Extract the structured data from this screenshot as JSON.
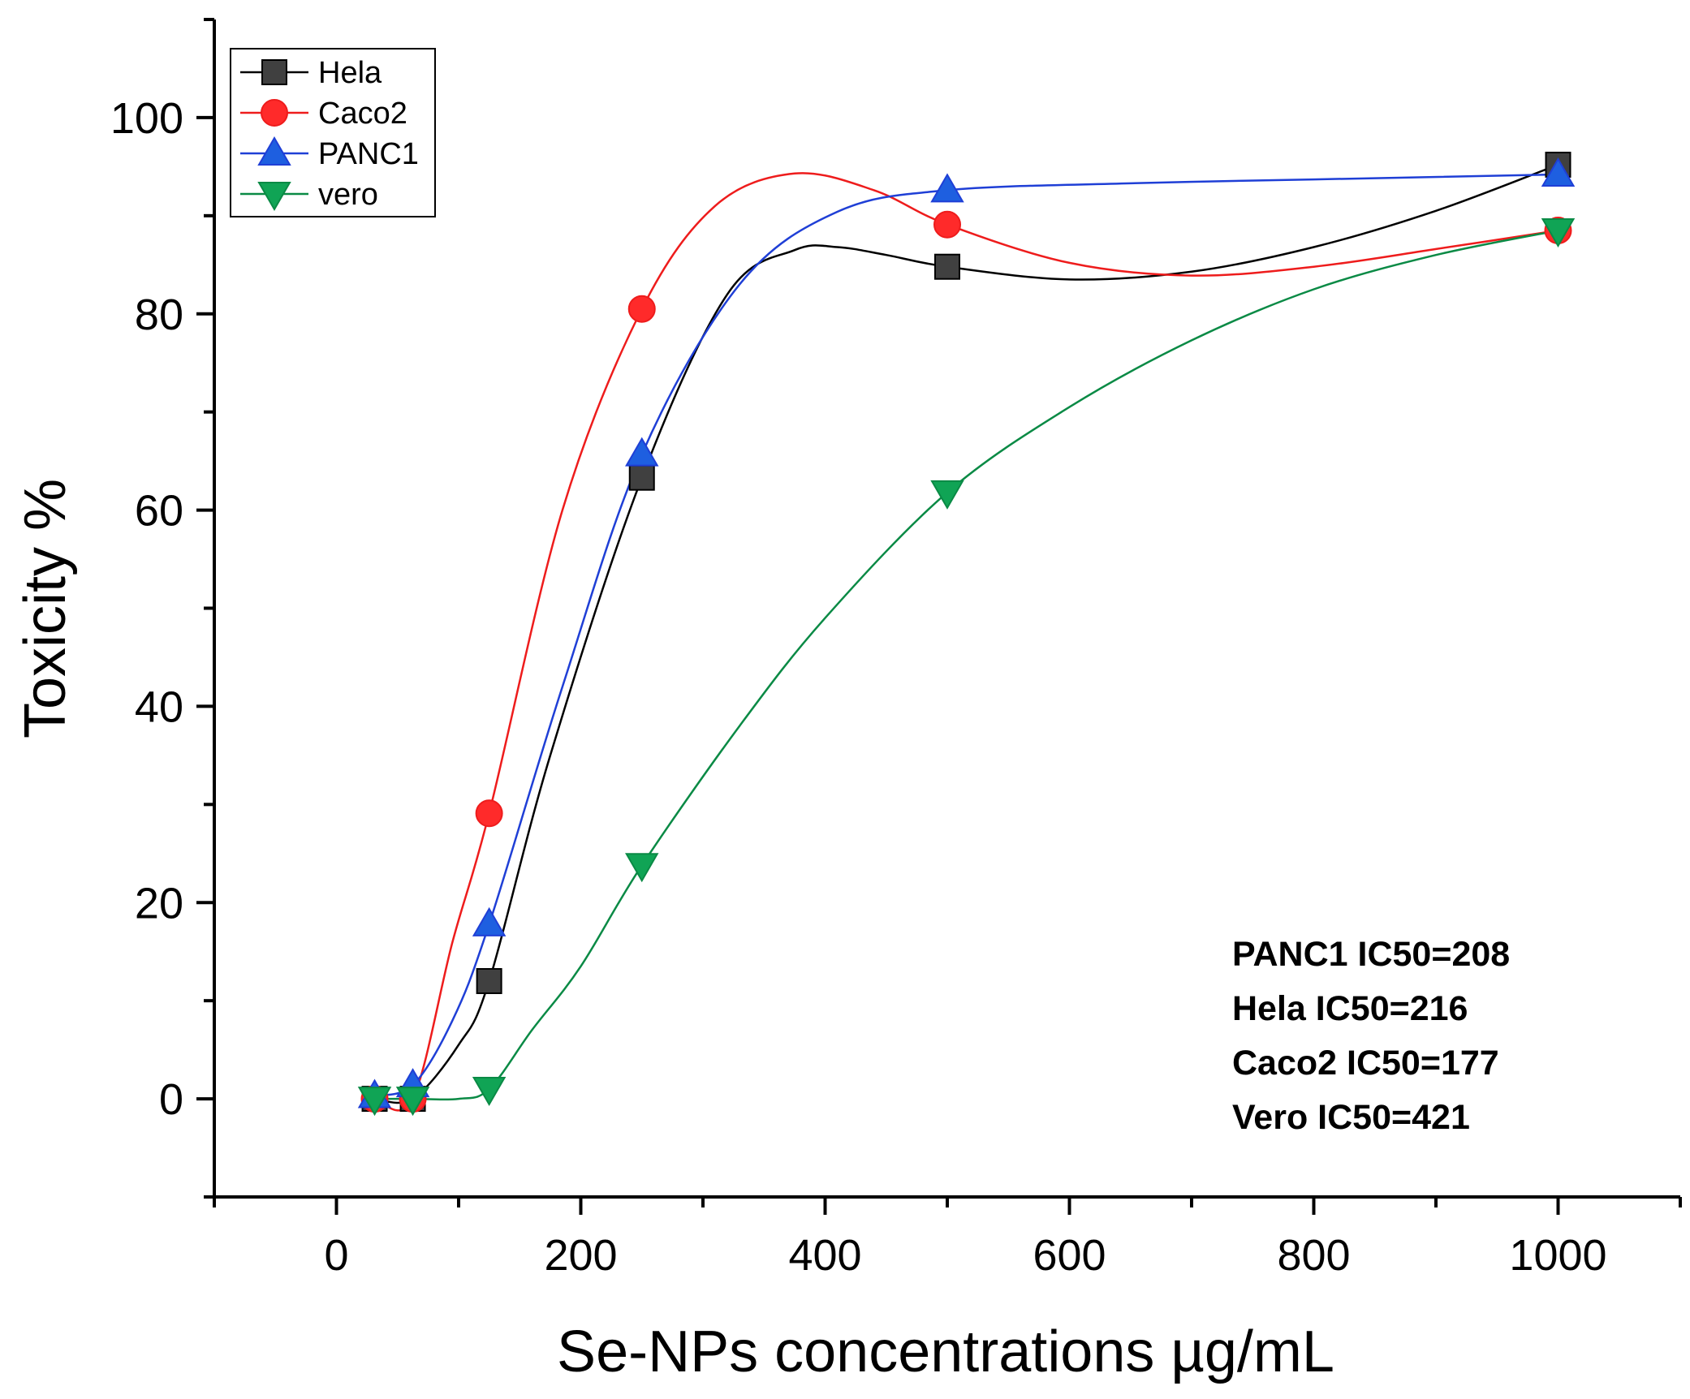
{
  "chart_data": {
    "type": "line",
    "title": "",
    "xlabel": "Se-NPs concentrations µg/mL",
    "ylabel": "Toxicity %",
    "xlim": [
      -100,
      1100
    ],
    "ylim": [
      -10,
      110
    ],
    "x_ticks": [
      0,
      200,
      400,
      600,
      800,
      1000
    ],
    "x_tick_labels": [
      "0",
      "200",
      "400",
      "600",
      "800",
      "1000"
    ],
    "x_minor_ticks": [
      -100,
      100,
      300,
      500,
      700,
      900,
      1100
    ],
    "y_ticks": [
      0,
      20,
      40,
      60,
      80,
      100
    ],
    "y_tick_labels": [
      "0",
      "20",
      "40",
      "60",
      "80",
      "100"
    ],
    "y_minor_ticks": [
      -10,
      10,
      30,
      50,
      70,
      90,
      110
    ],
    "grid": false,
    "legend_position": "top-left",
    "series": [
      {
        "name": "Hela",
        "color": "#000000",
        "fill": "#404040",
        "marker": "square",
        "x": [
          31.25,
          62.5,
          125,
          250,
          500,
          1000
        ],
        "y": [
          0,
          0,
          12,
          63.3,
          84.8,
          95.2
        ],
        "curve": [
          [
            31.25,
            0
          ],
          [
            62.5,
            0
          ],
          [
            100,
            5.5
          ],
          [
            125,
            12
          ],
          [
            175,
            35
          ],
          [
            250,
            63.3
          ],
          [
            320,
            82
          ],
          [
            375,
            86.5
          ],
          [
            410,
            86.8
          ],
          [
            450,
            86
          ],
          [
            500,
            84.8
          ],
          [
            600,
            83.5
          ],
          [
            700,
            84.3
          ],
          [
            800,
            86.8
          ],
          [
            900,
            90.5
          ],
          [
            1000,
            95.2
          ]
        ]
      },
      {
        "name": "Caco2",
        "color": "#ee1c1c",
        "fill": "#ff2a2a",
        "marker": "circle",
        "x": [
          31.25,
          62.5,
          125,
          250,
          500,
          1000
        ],
        "y": [
          0,
          0,
          29.1,
          80.5,
          89.1,
          88.5
        ],
        "curve": [
          [
            31.25,
            0
          ],
          [
            62.5,
            0
          ],
          [
            95,
            16
          ],
          [
            125,
            29.1
          ],
          [
            185,
            60
          ],
          [
            250,
            80.5
          ],
          [
            310,
            91
          ],
          [
            375,
            94.3
          ],
          [
            440,
            92.6
          ],
          [
            500,
            89.1
          ],
          [
            600,
            85.2
          ],
          [
            700,
            83.9
          ],
          [
            800,
            84.8
          ],
          [
            900,
            86.6
          ],
          [
            1000,
            88.5
          ]
        ]
      },
      {
        "name": "PANC1",
        "color": "#1f3fd6",
        "fill": "#1e5fe0",
        "marker": "triangle-up",
        "x": [
          31.25,
          62.5,
          125,
          250,
          500,
          1000
        ],
        "y": [
          0.3,
          1.4,
          17.8,
          65.7,
          92.6,
          94.2
        ],
        "curve": [
          [
            31.25,
            0.3
          ],
          [
            62.5,
            1.4
          ],
          [
            95,
            8
          ],
          [
            125,
            17.8
          ],
          [
            185,
            42
          ],
          [
            250,
            65.7
          ],
          [
            330,
            83
          ],
          [
            410,
            90.4
          ],
          [
            500,
            92.6
          ],
          [
            650,
            93.3
          ],
          [
            800,
            93.7
          ],
          [
            1000,
            94.2
          ]
        ]
      },
      {
        "name": "vero",
        "color": "#0a8a45",
        "fill": "#10a455",
        "marker": "triangle-down",
        "x": [
          31.25,
          62.5,
          125,
          250,
          500,
          1000
        ],
        "y": [
          0,
          0,
          1,
          23.8,
          61.8,
          88.5
        ],
        "curve": [
          [
            31.25,
            0
          ],
          [
            62.5,
            0
          ],
          [
            100,
            0
          ],
          [
            125,
            1
          ],
          [
            160,
            7
          ],
          [
            200,
            13.5
          ],
          [
            250,
            23.8
          ],
          [
            330,
            38
          ],
          [
            400,
            49
          ],
          [
            500,
            61.8
          ],
          [
            600,
            70.5
          ],
          [
            700,
            77.3
          ],
          [
            800,
            82.5
          ],
          [
            900,
            86
          ],
          [
            1000,
            88.5
          ]
        ]
      }
    ],
    "annotations": [
      "PANC1 IC50=208",
      "Hela IC50=216",
      "Caco2  IC50=177",
      "Vero IC50=421"
    ]
  }
}
